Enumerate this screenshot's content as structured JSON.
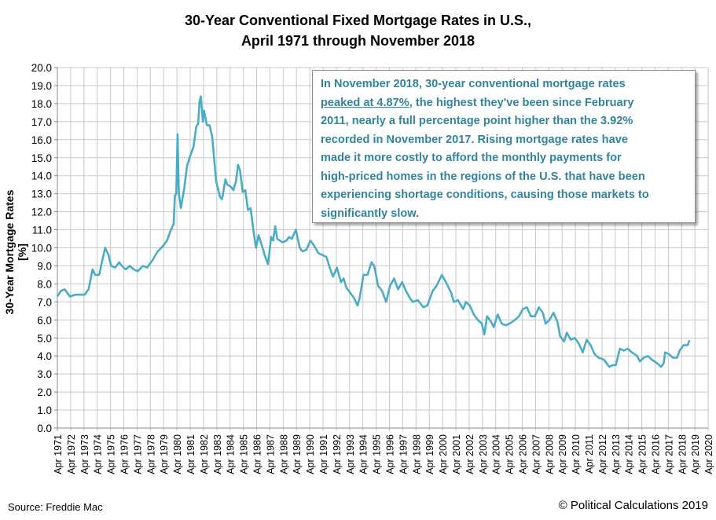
{
  "chart_data": {
    "type": "line",
    "title": "30-Year Conventional Fixed Mortgage Rates in U.S.,",
    "subtitle": "April 1971 through November 2018",
    "ylabel": "30-Year Mortgage Rates [%]",
    "xlabel": "",
    "ylim": [
      0,
      20
    ],
    "y_ticks": [
      "0.0",
      "1.0",
      "2.0",
      "3.0",
      "4.0",
      "5.0",
      "6.0",
      "7.0",
      "8.0",
      "9.0",
      "10.0",
      "11.0",
      "12.0",
      "13.0",
      "14.0",
      "15.0",
      "16.0",
      "17.0",
      "18.0",
      "19.0",
      "20.0"
    ],
    "x_ticks": [
      "Apr 1971",
      "Apr 1972",
      "Apr 1973",
      "Apr 1974",
      "Apr 1975",
      "Apr 1976",
      "Apr 1977",
      "Apr 1978",
      "Apr 1979",
      "Apr 1980",
      "Apr 1981",
      "Apr 1982",
      "Apr 1983",
      "Apr 1984",
      "Apr 1985",
      "Apr 1986",
      "Apr 1987",
      "Apr 1988",
      "Apr 1989",
      "Apr 1990",
      "Apr 1991",
      "Apr 1992",
      "Apr 1993",
      "Apr 1994",
      "Apr 1995",
      "Apr 1996",
      "Apr 1997",
      "Apr 1998",
      "Apr 1999",
      "Apr 2000",
      "Apr 2001",
      "Apr 2002",
      "Apr 2003",
      "Apr 2004",
      "Apr 2005",
      "Apr 2006",
      "Apr 2007",
      "Apr 2008",
      "Apr 2009",
      "Apr 2010",
      "Apr 2011",
      "Apr 2012",
      "Apr 2013",
      "Apr 2014",
      "Apr 2015",
      "Apr 2016",
      "Apr 2017",
      "Apr 2018",
      "Apr 2019",
      "Apr 2020"
    ],
    "grid": true,
    "line_color": "#4bacc6",
    "series": [
      {
        "x": [
          1971.25,
          1971.5,
          1971.8,
          1972.2,
          1972.6,
          1973.3,
          1973.6,
          1973.9,
          1974.1,
          1974.4,
          1974.6,
          1974.85,
          1975.1,
          1975.3,
          1975.6,
          1975.9,
          1976.1,
          1976.4,
          1976.7,
          1977.0,
          1977.3,
          1977.7,
          1978.0,
          1978.4,
          1978.8,
          1979.2,
          1979.5,
          1979.8,
          1980.0,
          1980.1,
          1980.2,
          1980.3,
          1980.4,
          1980.55,
          1980.8,
          1981.0,
          1981.2,
          1981.5,
          1981.7,
          1981.85,
          1981.95,
          1982.05,
          1982.2,
          1982.3,
          1982.5,
          1982.7,
          1982.9,
          1983.2,
          1983.5,
          1983.65,
          1983.9,
          1984.05,
          1984.3,
          1984.5,
          1984.7,
          1984.85,
          1985.0,
          1985.2,
          1985.4,
          1985.6,
          1985.8,
          1986.0,
          1986.2,
          1986.4,
          1986.7,
          1986.9,
          1987.1,
          1987.35,
          1987.5,
          1987.65,
          1987.8,
          1988.0,
          1988.2,
          1988.5,
          1988.7,
          1988.9,
          1989.2,
          1989.5,
          1989.7,
          1990.0,
          1990.3,
          1990.6,
          1990.9,
          1991.2,
          1991.5,
          1991.8,
          1992.0,
          1992.3,
          1992.6,
          1992.8,
          1993.0,
          1993.3,
          1993.6,
          1993.85,
          1994.0,
          1994.3,
          1994.6,
          1994.9,
          1995.1,
          1995.4,
          1995.7,
          1996.0,
          1996.3,
          1996.6,
          1996.9,
          1997.2,
          1997.5,
          1997.8,
          1998.0,
          1998.4,
          1998.8,
          1999.1,
          1999.5,
          1999.8,
          2000.2,
          2000.5,
          2000.9,
          2001.1,
          2001.4,
          2001.8,
          2002.0,
          2002.3,
          2002.6,
          2002.9,
          2003.2,
          2003.4,
          2003.6,
          2003.9,
          2004.1,
          2004.4,
          2004.7,
          2005.0,
          2005.3,
          2005.7,
          2006.0,
          2006.3,
          2006.6,
          2006.9,
          2007.2,
          2007.5,
          2007.8,
          2008.0,
          2008.3,
          2008.6,
          2008.9,
          2009.1,
          2009.4,
          2009.6,
          2009.9,
          2010.2,
          2010.5,
          2010.8,
          2011.1,
          2011.4,
          2011.7,
          2012.0,
          2012.4,
          2012.8,
          2013.1,
          2013.3,
          2013.6,
          2013.9,
          2014.2,
          2014.5,
          2014.9,
          2015.1,
          2015.4,
          2015.7,
          2016.0,
          2016.4,
          2016.7,
          2016.9,
          2017.0,
          2017.3,
          2017.6,
          2017.9,
          2018.1,
          2018.4,
          2018.7,
          2018.85
        ],
        "values": [
          7.3,
          7.6,
          7.7,
          7.3,
          7.4,
          7.4,
          7.7,
          8.8,
          8.5,
          8.5,
          9.2,
          10.0,
          9.6,
          9.0,
          8.9,
          9.2,
          9.0,
          8.8,
          9.0,
          8.8,
          8.7,
          9.0,
          8.9,
          9.3,
          9.8,
          10.1,
          10.4,
          11.0,
          11.3,
          12.9,
          13.0,
          16.3,
          13.0,
          12.2,
          13.3,
          14.5,
          15.0,
          15.6,
          16.7,
          16.9,
          18.1,
          18.4,
          17.0,
          17.6,
          16.8,
          16.8,
          16.2,
          13.7,
          12.8,
          12.7,
          13.8,
          13.5,
          13.4,
          13.2,
          13.7,
          14.6,
          14.3,
          13.1,
          13.2,
          12.1,
          12.2,
          11.0,
          10.0,
          10.7,
          10.0,
          9.5,
          9.1,
          10.6,
          10.4,
          11.2,
          10.5,
          10.4,
          10.3,
          10.4,
          10.6,
          10.5,
          11.0,
          10.0,
          9.8,
          9.9,
          10.4,
          10.1,
          9.7,
          9.6,
          9.5,
          8.8,
          8.4,
          8.9,
          8.1,
          8.3,
          7.8,
          7.5,
          7.2,
          6.8,
          7.2,
          8.5,
          8.5,
          9.2,
          9.0,
          7.9,
          7.6,
          7.0,
          7.9,
          8.3,
          7.7,
          8.1,
          7.6,
          7.2,
          7.0,
          7.1,
          6.7,
          6.8,
          7.6,
          7.9,
          8.5,
          8.1,
          7.5,
          7.0,
          7.1,
          6.6,
          7.0,
          6.8,
          6.3,
          6.0,
          5.8,
          5.2,
          6.2,
          5.9,
          5.6,
          6.3,
          5.8,
          5.7,
          5.8,
          6.0,
          6.2,
          6.6,
          6.7,
          6.2,
          6.2,
          6.7,
          6.4,
          5.8,
          6.0,
          6.4,
          5.9,
          5.1,
          4.8,
          5.3,
          4.9,
          5.0,
          4.7,
          4.2,
          4.9,
          4.6,
          4.1,
          3.9,
          3.8,
          3.4,
          3.5,
          3.5,
          4.4,
          4.3,
          4.4,
          4.2,
          4.0,
          3.7,
          3.9,
          4.0,
          3.8,
          3.6,
          3.4,
          3.6,
          4.2,
          4.1,
          3.9,
          3.9,
          4.3,
          4.6,
          4.6,
          4.87
        ]
      }
    ]
  },
  "annotation": {
    "lines": [
      {
        "text": "In November 2018, 30-year conventional mortgage rates"
      },
      {
        "underlined": "peaked at 4.87%",
        "text": ", the highest they've been since February"
      },
      {
        "text": "2011, nearly a full percentage point higher than the 3.92%"
      },
      {
        "text": "recorded in November 2017.  Rising mortgage rates have"
      },
      {
        "text": "made it more costly to afford the monthly payments for"
      },
      {
        "text": "high-priced homes in the regions of the U.S. that have been"
      },
      {
        "text": "experiencing shortage conditions, causing those markets to"
      },
      {
        "text": "significantly slow."
      }
    ],
    "text_color": "#31849b"
  },
  "footer": {
    "source": "Source: Freddie Mac",
    "copyright": "© Political Calculations 2019"
  }
}
